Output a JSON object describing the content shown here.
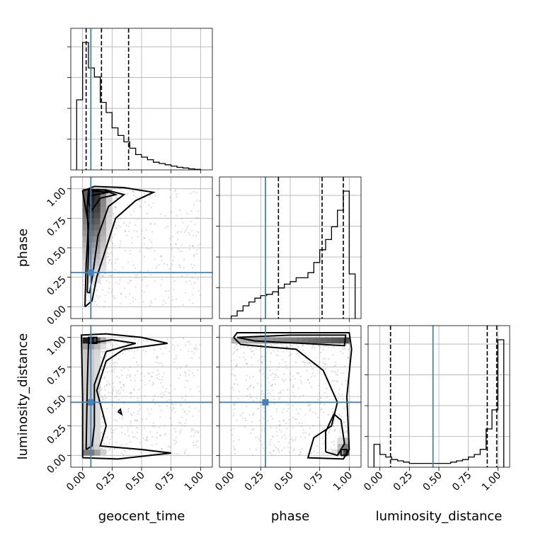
{
  "parameters": [
    "geocent_time",
    "phase",
    "luminosity_distance"
  ],
  "tick_values": [
    0.0,
    0.25,
    0.5,
    0.75,
    1.0
  ],
  "tick_labels": [
    "0.00",
    "0.25",
    "0.50",
    "0.75",
    "1.00"
  ],
  "axis_labels": {
    "x": [
      "geocent_time",
      "phase",
      "luminosity_distance"
    ],
    "y": [
      "phase",
      "luminosity_distance"
    ]
  },
  "colors": {
    "truth": "#4682b4",
    "hist": "#000000",
    "grid": "#b0b0b0",
    "points": "#808080"
  },
  "chart_data": [
    {
      "type": "histogram",
      "parameter": "geocent_time",
      "xlim": [
        -0.1,
        1.1
      ],
      "bin_edges": [
        -0.05,
        0.0,
        0.05,
        0.1,
        0.15,
        0.2,
        0.25,
        0.3,
        0.35,
        0.4,
        0.45,
        0.5,
        0.55,
        0.6,
        0.65,
        0.7,
        0.75,
        0.8,
        0.85,
        0.9,
        0.95,
        1.0
      ],
      "heights": [
        0.55,
        1.0,
        0.8,
        0.73,
        0.53,
        0.45,
        0.33,
        0.27,
        0.22,
        0.17,
        0.12,
        0.1,
        0.08,
        0.06,
        0.05,
        0.04,
        0.03,
        0.02,
        0.015,
        0.008,
        0.004
      ],
      "quantiles": [
        0.03,
        0.16,
        0.39
      ],
      "truth": 0.07
    },
    {
      "type": "histogram",
      "parameter": "phase",
      "xlim": [
        -0.1,
        1.1
      ],
      "bin_edges": [
        0.0,
        0.05,
        0.1,
        0.15,
        0.2,
        0.25,
        0.3,
        0.35,
        0.4,
        0.45,
        0.5,
        0.55,
        0.6,
        0.65,
        0.7,
        0.75,
        0.8,
        0.85,
        0.9,
        0.95,
        1.0,
        1.05
      ],
      "heights": [
        0.02,
        0.06,
        0.1,
        0.13,
        0.16,
        0.18,
        0.19,
        0.21,
        0.24,
        0.27,
        0.29,
        0.32,
        0.32,
        0.36,
        0.44,
        0.54,
        0.62,
        0.72,
        0.85,
        1.0,
        0.35
      ],
      "quantiles": [
        0.4,
        0.77,
        0.95
      ],
      "truth": 0.29
    },
    {
      "type": "histogram",
      "parameter": "luminosity_distance",
      "xlim": [
        -0.1,
        1.1
      ],
      "bin_edges": [
        -0.05,
        0.0,
        0.05,
        0.1,
        0.15,
        0.2,
        0.25,
        0.3,
        0.35,
        0.4,
        0.45,
        0.5,
        0.55,
        0.6,
        0.65,
        0.7,
        0.75,
        0.8,
        0.85,
        0.9,
        0.95,
        1.0,
        1.05
      ],
      "heights": [
        0.18,
        0.1,
        0.08,
        0.06,
        0.05,
        0.04,
        0.03,
        0.03,
        0.03,
        0.03,
        0.03,
        0.03,
        0.03,
        0.04,
        0.05,
        0.06,
        0.08,
        0.1,
        0.14,
        0.3,
        0.45,
        1.0
      ],
      "quantiles": [
        0.09,
        0.91,
        0.99
      ],
      "truth": 0.45
    },
    {
      "type": "2d-density",
      "x_parameter": "geocent_time",
      "y_parameter": "phase",
      "xlim": [
        -0.1,
        1.1
      ],
      "ylim": [
        -0.1,
        1.1
      ],
      "truth": [
        0.07,
        0.29
      ],
      "density_peak": [
        0.1,
        0.97
      ],
      "contour_levels": 4
    },
    {
      "type": "2d-density",
      "x_parameter": "geocent_time",
      "y_parameter": "luminosity_distance",
      "xlim": [
        -0.1,
        1.1
      ],
      "ylim": [
        -0.1,
        1.1
      ],
      "truth": [
        0.07,
        0.45
      ],
      "density_peak": [
        0.05,
        1.0
      ],
      "contour_levels": 4
    },
    {
      "type": "2d-density",
      "x_parameter": "phase",
      "y_parameter": "luminosity_distance",
      "xlim": [
        -0.1,
        1.1
      ],
      "ylim": [
        -0.1,
        1.1
      ],
      "truth": [
        0.29,
        0.45
      ],
      "density_peak": [
        0.95,
        0.0
      ],
      "contour_levels": 4
    }
  ]
}
